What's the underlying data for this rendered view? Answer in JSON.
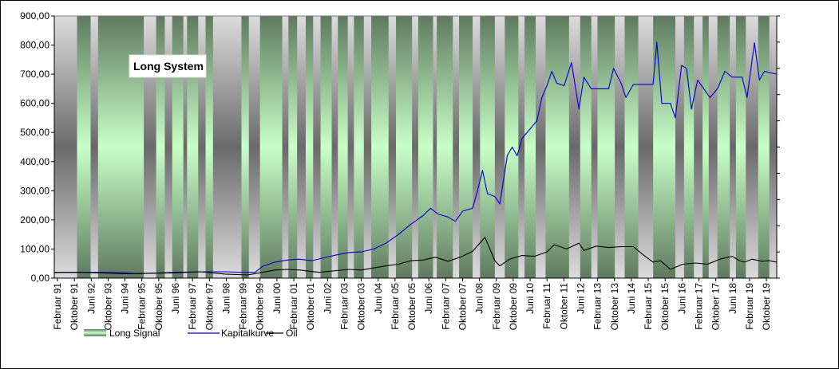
{
  "chart_data": {
    "type": "line",
    "title": "",
    "annotation": "Long System",
    "ylim": [
      0,
      900
    ],
    "yticks": [
      "900,00",
      "800,00",
      "700,00",
      "600,00",
      "500,00",
      "400,00",
      "300,00",
      "200,00",
      "100,00",
      "0,00"
    ],
    "xlim": [
      1991.08,
      2020.3
    ],
    "xtick_labels": [
      "Februar 91",
      "Oktober 91",
      "Juni 92",
      "Oktober 93",
      "Juni 94",
      "Februar 95",
      "Oktober 95",
      "Juni 96",
      "Februar 97",
      "Oktober 97",
      "Juni 98",
      "Februar 99",
      "Oktober 99",
      "Juni 00",
      "Februar 01",
      "Oktober 01",
      "Juni 02",
      "Februar 03",
      "Oktober 03",
      "Juni 04",
      "Februar 05",
      "Oktober 05",
      "Juni 06",
      "Februar 07",
      "Oktober 07",
      "Juni 08",
      "Februar 09",
      "Oktober 09",
      "Juni 10",
      "Februar 11",
      "Oktober 11",
      "Juni 12",
      "Februar 13",
      "Oktober 13",
      "Juni 14",
      "Februar 15",
      "Oktober 15",
      "Juni 16",
      "Februar 17",
      "Oktober 17",
      "Juni 18",
      "Februar 19",
      "Oktober 19"
    ],
    "legend_placement": "bottom",
    "legend": [
      "Long Signal",
      "Kapitalkurve",
      "Oil"
    ],
    "colors": {
      "kapitalkurve": "#0000cc",
      "oil": "#000000",
      "signal_on": "#c8ffc8",
      "signal_dark": "#5f7a5f",
      "signal_off_light": "#dcdcdc",
      "signal_off_dark": "#6a6a6a"
    },
    "long_signal_periods": [
      [
        1992.0,
        1992.55
      ],
      [
        1992.85,
        1994.7
      ],
      [
        1995.2,
        1995.55
      ],
      [
        1995.85,
        1996.3
      ],
      [
        1996.45,
        1996.9
      ],
      [
        1997.2,
        1997.5
      ],
      [
        1998.65,
        1998.95
      ],
      [
        1999.4,
        2000.3
      ],
      [
        2000.55,
        2000.9
      ],
      [
        2001.25,
        2001.55
      ],
      [
        2001.85,
        2002.3
      ],
      [
        2002.55,
        2002.95
      ],
      [
        2003.2,
        2003.6
      ],
      [
        2003.9,
        2004.6
      ],
      [
        2004.9,
        2005.55
      ],
      [
        2005.8,
        2006.4
      ],
      [
        2006.55,
        2007.2
      ],
      [
        2007.45,
        2008.0
      ],
      [
        2008.3,
        2008.9
      ],
      [
        2009.3,
        2009.85
      ],
      [
        2010.1,
        2010.55
      ],
      [
        2010.95,
        2011.9
      ],
      [
        2012.35,
        2012.8
      ],
      [
        2013.05,
        2013.75
      ],
      [
        2014.15,
        2014.7
      ],
      [
        2015.3,
        2016.2
      ],
      [
        2016.55,
        2016.95
      ],
      [
        2017.3,
        2017.55
      ],
      [
        2017.9,
        2018.4
      ],
      [
        2018.65,
        2019.05
      ],
      [
        2019.55,
        2020.0
      ]
    ],
    "series": [
      {
        "name": "Kapitalkurve",
        "points": [
          [
            1991.08,
            20
          ],
          [
            1992.0,
            20
          ],
          [
            1993.0,
            20
          ],
          [
            1994.0,
            18
          ],
          [
            1994.5,
            15
          ],
          [
            1995.0,
            17
          ],
          [
            1996.0,
            18
          ],
          [
            1997.0,
            22
          ],
          [
            1998.0,
            22
          ],
          [
            1998.6,
            20
          ],
          [
            1999.2,
            20
          ],
          [
            1999.5,
            40
          ],
          [
            2000.0,
            55
          ],
          [
            2000.5,
            62
          ],
          [
            2001.0,
            65
          ],
          [
            2001.5,
            60
          ],
          [
            2002.0,
            70
          ],
          [
            2002.5,
            80
          ],
          [
            2003.0,
            88
          ],
          [
            2003.5,
            90
          ],
          [
            2004.0,
            100
          ],
          [
            2004.5,
            120
          ],
          [
            2005.0,
            150
          ],
          [
            2005.5,
            185
          ],
          [
            2006.0,
            215
          ],
          [
            2006.3,
            240
          ],
          [
            2006.6,
            220
          ],
          [
            2007.0,
            210
          ],
          [
            2007.3,
            195
          ],
          [
            2007.6,
            230
          ],
          [
            2008.0,
            240
          ],
          [
            2008.2,
            300
          ],
          [
            2008.4,
            370
          ],
          [
            2008.6,
            290
          ],
          [
            2008.9,
            280
          ],
          [
            2009.1,
            255
          ],
          [
            2009.4,
            420
          ],
          [
            2009.6,
            450
          ],
          [
            2009.8,
            420
          ],
          [
            2010.0,
            480
          ],
          [
            2010.3,
            510
          ],
          [
            2010.6,
            540
          ],
          [
            2010.8,
            620
          ],
          [
            2011.0,
            660
          ],
          [
            2011.2,
            710
          ],
          [
            2011.4,
            670
          ],
          [
            2011.7,
            660
          ],
          [
            2012.0,
            740
          ],
          [
            2012.3,
            580
          ],
          [
            2012.5,
            690
          ],
          [
            2012.8,
            650
          ],
          [
            2013.2,
            650
          ],
          [
            2013.5,
            650
          ],
          [
            2013.7,
            720
          ],
          [
            2014.0,
            670
          ],
          [
            2014.2,
            620
          ],
          [
            2014.5,
            665
          ],
          [
            2014.9,
            665
          ],
          [
            2015.3,
            665
          ],
          [
            2015.45,
            810
          ],
          [
            2015.65,
            600
          ],
          [
            2016.0,
            600
          ],
          [
            2016.2,
            550
          ],
          [
            2016.45,
            730
          ],
          [
            2016.65,
            720
          ],
          [
            2016.85,
            580
          ],
          [
            2017.1,
            680
          ],
          [
            2017.35,
            650
          ],
          [
            2017.6,
            620
          ],
          [
            2017.9,
            650
          ],
          [
            2018.2,
            710
          ],
          [
            2018.5,
            690
          ],
          [
            2018.9,
            690
          ],
          [
            2019.1,
            620
          ],
          [
            2019.4,
            808
          ],
          [
            2019.6,
            680
          ],
          [
            2019.8,
            710
          ],
          [
            2020.3,
            700
          ]
        ]
      },
      {
        "name": "Oil",
        "points": [
          [
            1991.08,
            19
          ],
          [
            1992.0,
            20
          ],
          [
            1993.0,
            18
          ],
          [
            1994.0,
            15
          ],
          [
            1995.0,
            17
          ],
          [
            1996.0,
            20
          ],
          [
            1997.0,
            22
          ],
          [
            1998.0,
            14
          ],
          [
            1998.9,
            11
          ],
          [
            1999.5,
            20
          ],
          [
            2000.0,
            28
          ],
          [
            2000.5,
            30
          ],
          [
            2001.0,
            28
          ],
          [
            2001.8,
            20
          ],
          [
            2002.5,
            26
          ],
          [
            2003.0,
            30
          ],
          [
            2003.5,
            28
          ],
          [
            2004.0,
            35
          ],
          [
            2004.5,
            42
          ],
          [
            2005.0,
            48
          ],
          [
            2005.5,
            60
          ],
          [
            2006.0,
            62
          ],
          [
            2006.5,
            72
          ],
          [
            2007.0,
            58
          ],
          [
            2007.5,
            72
          ],
          [
            2008.0,
            92
          ],
          [
            2008.5,
            140
          ],
          [
            2008.9,
            60
          ],
          [
            2009.1,
            42
          ],
          [
            2009.5,
            65
          ],
          [
            2010.0,
            78
          ],
          [
            2010.5,
            75
          ],
          [
            2011.0,
            90
          ],
          [
            2011.3,
            115
          ],
          [
            2011.8,
            100
          ],
          [
            2012.3,
            120
          ],
          [
            2012.5,
            95
          ],
          [
            2013.0,
            110
          ],
          [
            2013.5,
            105
          ],
          [
            2014.0,
            108
          ],
          [
            2014.5,
            108
          ],
          [
            2014.9,
            80
          ],
          [
            2015.3,
            55
          ],
          [
            2015.6,
            60
          ],
          [
            2016.0,
            30
          ],
          [
            2016.5,
            48
          ],
          [
            2017.0,
            52
          ],
          [
            2017.5,
            48
          ],
          [
            2018.0,
            65
          ],
          [
            2018.5,
            75
          ],
          [
            2018.8,
            60
          ],
          [
            2019.0,
            55
          ],
          [
            2019.3,
            65
          ],
          [
            2019.7,
            58
          ],
          [
            2020.0,
            60
          ],
          [
            2020.3,
            55
          ]
        ]
      }
    ]
  }
}
